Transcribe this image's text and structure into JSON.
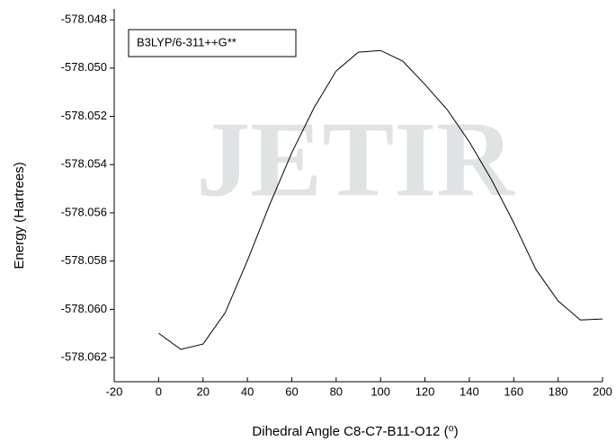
{
  "chart_data": {
    "type": "line",
    "watermark": "JETIR",
    "annotation": "B3LYP/6-311++G**",
    "x_label": "Dihedral Angle C8-C7-B11-O12 (⁰)",
    "y_label": "Energy  (Hartrees)",
    "x": [
      0,
      10,
      20,
      30,
      40,
      50,
      60,
      70,
      80,
      90,
      100,
      110,
      120,
      130,
      140,
      150,
      160,
      170,
      180,
      190,
      200
    ],
    "series": [
      {
        "color": "#000000",
        "values": [
          -578.06099,
          -578.06166,
          -578.06144,
          -578.06014,
          -578.05798,
          -578.05567,
          -578.05351,
          -578.05165,
          -578.05012,
          -578.04934,
          -578.04927,
          -578.04971,
          -578.05068,
          -578.05172,
          -578.05306,
          -578.05463,
          -578.05641,
          -578.05835,
          -578.05965,
          -578.06044,
          -578.0604
        ]
      }
    ],
    "xlim": [
      -20,
      200
    ],
    "xticks": [
      -20,
      0,
      20,
      40,
      60,
      80,
      100,
      120,
      140,
      160,
      180,
      200
    ],
    "ylim": [
      -578.063,
      -578.04755
    ],
    "yticks": [
      -578.048,
      {
        "value": -578.05,
        "label": "-578.050"
      },
      -578.052,
      -578.054,
      -578.056,
      -578.058,
      {
        "value": -578.06,
        "label": "-578.060"
      },
      -578.062
    ]
  }
}
